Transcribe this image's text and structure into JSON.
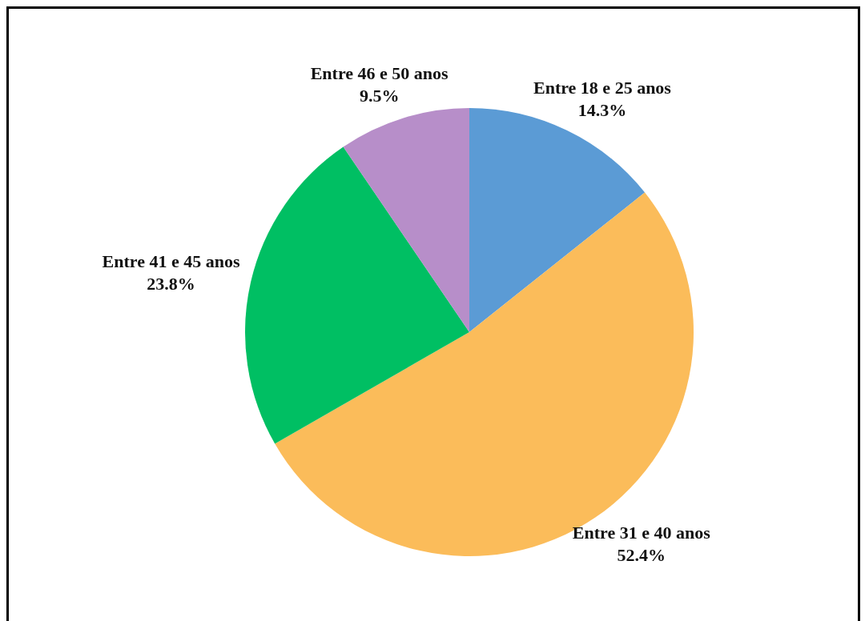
{
  "chart_data": {
    "type": "pie",
    "categories": [
      "Entre 18 e 25 anos",
      "Entre 31 e 40 anos",
      "Entre 41 e 45 anos",
      "Entre 46 e 50 anos"
    ],
    "values": [
      14.3,
      52.4,
      23.8,
      9.5
    ],
    "value_labels": [
      "14.3%",
      "52.4%",
      "23.8%",
      "9.5%"
    ],
    "colors": [
      "#5b9bd5",
      "#fbbc5a",
      "#00bf63",
      "#b78ec9"
    ],
    "legend": false
  }
}
